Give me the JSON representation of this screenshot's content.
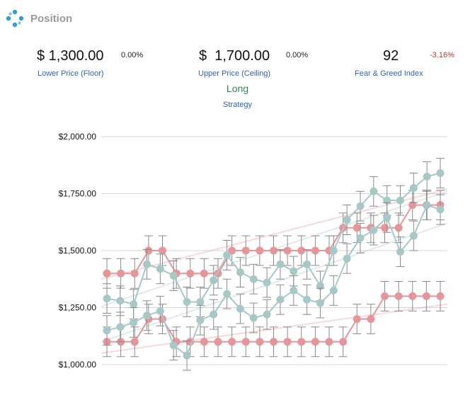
{
  "header": {
    "title": "Position",
    "icon": "network-nodes-icon",
    "icon_color": "#2f9be0"
  },
  "metrics": {
    "lower": {
      "value": "$ 1,300.00",
      "change": "0.00%",
      "label": "Lower Price (Floor)"
    },
    "upper": {
      "value": "$  1,700.00",
      "change": "0.00%",
      "label": "Upper Price (Ceiling)"
    },
    "fear_greed": {
      "value": "92",
      "change": "-3.16%",
      "label": "Fear & Greed Index"
    }
  },
  "strategy": {
    "value": "Long",
    "label": "Strategy"
  },
  "colors": {
    "pink": "#e8959a",
    "teal": "#a6c8c6",
    "link": "#2f63b8",
    "positive": "#2e8b57",
    "negative": "#c0392b"
  },
  "chart_data": {
    "type": "line",
    "ylim": [
      1000,
      2000
    ],
    "yticks": [
      "$2,000.00",
      "$1,750.00",
      "$1,500.00",
      "$1,250.00",
      "$1,000.00"
    ],
    "ytick_values": [
      2000,
      1750,
      1500,
      1250,
      1000
    ],
    "grid": true,
    "error_bar_half_width": 65,
    "series": [
      {
        "color": "#e8959a",
        "values": [
          1400,
          1400,
          1400,
          1500,
          1500,
          1400,
          1400,
          1400,
          1400,
          1500,
          1500,
          1500,
          1500,
          1500,
          1500,
          1500,
          1500,
          1600,
          1600,
          1600,
          1600,
          1600,
          1700,
          1700,
          1700
        ]
      },
      {
        "color": "#e8959a",
        "values": [
          1100,
          1100,
          1100,
          1200,
          1200,
          1100,
          1100,
          1100,
          1100,
          1100,
          1100,
          1100,
          1100,
          1100,
          1100,
          1100,
          1100,
          1100,
          1200,
          1200,
          1300,
          1300,
          1300,
          1300,
          1300
        ]
      },
      {
        "color": "#a6c8c6",
        "values": [
          1290,
          1280,
          1265,
          1440,
          1420,
          1390,
          1275,
          1275,
          1370,
          1480,
          1405,
          1375,
          1360,
          1440,
          1410,
          1440,
          1345,
          1500,
          1635,
          1695,
          1760,
          1720,
          1720,
          1775,
          1825,
          1840
        ]
      },
      {
        "color": "#a6c8c6",
        "values": [
          1150,
          1165,
          1185,
          1215,
          1235,
          1085,
          1040,
          1195,
          1220,
          1310,
          1245,
          1205,
          1220,
          1285,
          1325,
          1285,
          1270,
          1325,
          1465,
          1555,
          1590,
          1645,
          1495,
          1565,
          1700,
          1680
        ]
      }
    ],
    "trendlines": [
      {
        "color": "#e8959a",
        "start": 1375,
        "end": 1770
      },
      {
        "color": "#e8959a",
        "start": 1050,
        "end": 1265
      },
      {
        "color": "#a6c8c6",
        "start": 1255,
        "end": 1760
      },
      {
        "color": "#a6c8c6",
        "start": 1100,
        "end": 1620
      }
    ]
  }
}
